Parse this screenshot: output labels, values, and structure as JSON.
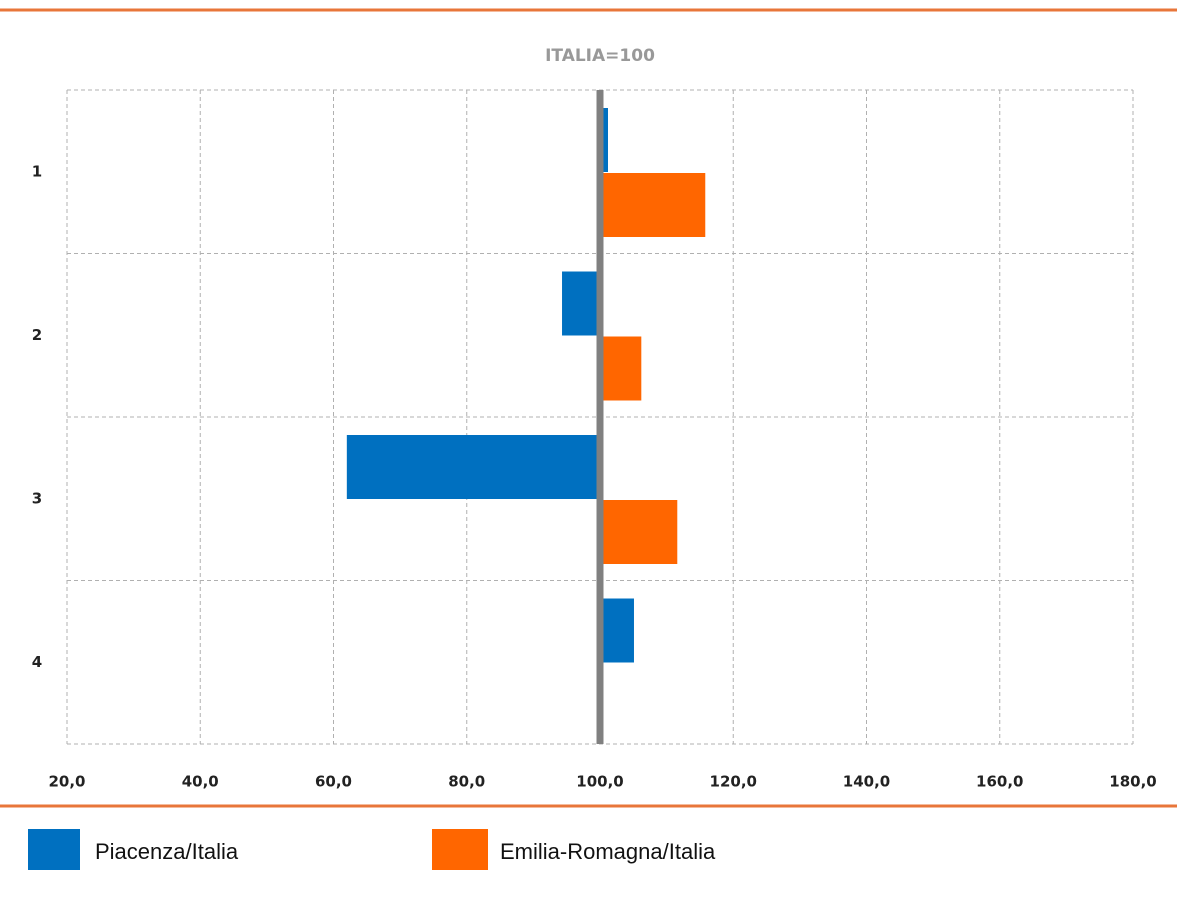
{
  "chart_data": {
    "type": "bar",
    "orientation": "horizontal",
    "title": "ITALIA=100",
    "categories": [
      "1",
      "2",
      "3",
      "4"
    ],
    "series": [
      {
        "name": "Piacenza/Italia",
        "color": "#0070c0",
        "values": [
          101.2,
          94.3,
          62.0,
          105.1
        ]
      },
      {
        "name": "Emilia-Romagna/Italia",
        "color": "#ff6600",
        "values": [
          115.8,
          106.2,
          111.6,
          null
        ]
      }
    ],
    "baseline": 100,
    "xlim": [
      20,
      180
    ],
    "xticks": [
      {
        "value": 20,
        "label": "20,0"
      },
      {
        "value": 40,
        "label": "40,0"
      },
      {
        "value": 60,
        "label": "60,0"
      },
      {
        "value": 80,
        "label": "80,0"
      },
      {
        "value": 100,
        "label": "100,0"
      },
      {
        "value": 120,
        "label": "120,0"
      },
      {
        "value": 140,
        "label": "140,0"
      },
      {
        "value": 160,
        "label": "160,0"
      },
      {
        "value": 180,
        "label": "180,0"
      }
    ],
    "grid": true
  }
}
